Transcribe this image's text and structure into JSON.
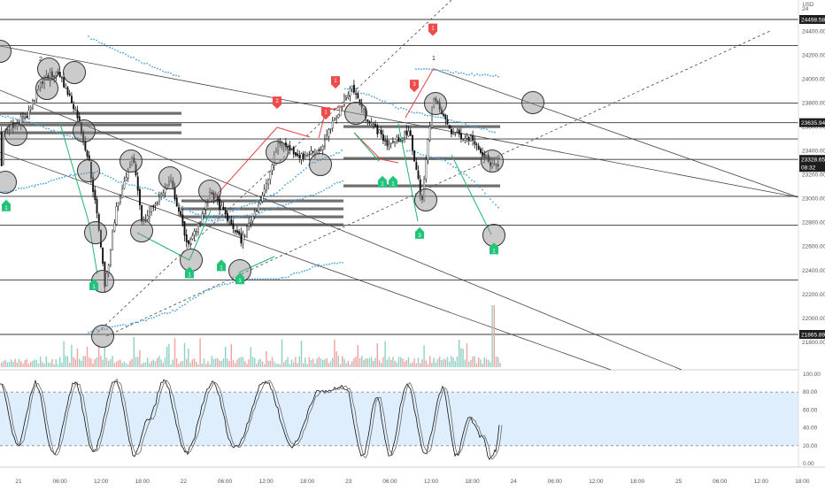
{
  "currency": "USD",
  "price_axis": {
    "ticks": [
      "24400.00",
      "24200.00",
      "24000.00",
      "23800.00",
      "23600.00",
      "23400.00",
      "23200.00",
      "23000.00",
      "22800.00",
      "22600.00",
      "22400.00",
      "22200.00",
      "22000.00",
      "21800.00"
    ],
    "top_cut_label": "24"
  },
  "price_badges": [
    {
      "label": "24498.58",
      "price": 24498.58,
      "style": "dark"
    },
    {
      "label": "23635.94",
      "price": 23635.94,
      "style": "dark"
    },
    {
      "label": "23328.65",
      "price": 23328.65,
      "style": "dark"
    },
    {
      "label": "08:32",
      "price": 23262,
      "style": "dark"
    },
    {
      "label": "21865.89",
      "price": 21865.89,
      "style": "dark"
    }
  ],
  "osc_axis": {
    "ticks": [
      "100.00",
      "80.00",
      "60.00",
      "40.00",
      "20.00",
      "0.00"
    ]
  },
  "time_axis": {
    "labels": [
      "21",
      "06:00",
      "12:00",
      "18:00",
      "22",
      "06:00",
      "12:00",
      "18:00",
      "23",
      "06:00",
      "12:00",
      "18:00",
      "24",
      "06:00",
      "12:00",
      "18:00",
      "25",
      "06:00",
      "12:00",
      "18:00"
    ]
  },
  "markers": {
    "sell": [
      {
        "x": 489,
        "price": 24420,
        "label": "1"
      },
      {
        "x": 379,
        "price": 23980,
        "label": "1"
      },
      {
        "x": 468,
        "price": 23950,
        "label": "3"
      },
      {
        "x": 313,
        "price": 23810,
        "label": "2"
      },
      {
        "x": 368,
        "price": 23720,
        "label": "1"
      }
    ],
    "buy": [
      {
        "x": 7,
        "price": 22940,
        "label": "1"
      },
      {
        "x": 432,
        "price": 23140,
        "label": "1"
      },
      {
        "x": 444,
        "price": 23140,
        "label": "1"
      },
      {
        "x": 474,
        "price": 22710,
        "label": "3"
      },
      {
        "x": 214,
        "price": 22380,
        "label": "1"
      },
      {
        "x": 250,
        "price": 22440,
        "label": "1"
      },
      {
        "x": 271,
        "price": 22330,
        "label": "1"
      },
      {
        "x": 106,
        "price": 22280,
        "label": "1"
      },
      {
        "x": 558,
        "price": 22580,
        "label": "1"
      }
    ]
  },
  "pivot_labels": [
    {
      "x": 46,
      "price": 24150,
      "text": "2"
    },
    {
      "x": 490,
      "price": 24160,
      "text": "1"
    }
  ],
  "chart_data": {
    "type": "candlestick",
    "price_range": [
      21600,
      24700
    ],
    "oscillator_range": [
      0,
      100
    ],
    "oscillator_band": [
      20,
      80
    ],
    "horizontal_levels": [
      24498.58,
      24280,
      23800,
      23635.94,
      23500,
      23328.65,
      23020,
      22780,
      22320,
      21865.89
    ],
    "candles_sampled": [
      {
        "x": 2,
        "close": 23560
      },
      {
        "x": 30,
        "close": 23700
      },
      {
        "x": 48,
        "close": 24000
      },
      {
        "x": 66,
        "close": 24050
      },
      {
        "x": 86,
        "close": 23720
      },
      {
        "x": 100,
        "close": 23300
      },
      {
        "x": 112,
        "close": 22700
      },
      {
        "x": 118,
        "close": 22250
      },
      {
        "x": 130,
        "close": 22900
      },
      {
        "x": 150,
        "close": 23350
      },
      {
        "x": 160,
        "close": 22800
      },
      {
        "x": 192,
        "close": 23150
      },
      {
        "x": 212,
        "close": 22600
      },
      {
        "x": 238,
        "close": 23050
      },
      {
        "x": 272,
        "close": 22650
      },
      {
        "x": 300,
        "close": 23100
      },
      {
        "x": 314,
        "close": 23480
      },
      {
        "x": 340,
        "close": 23350
      },
      {
        "x": 362,
        "close": 23420
      },
      {
        "x": 396,
        "close": 23950
      },
      {
        "x": 412,
        "close": 23700
      },
      {
        "x": 438,
        "close": 23450
      },
      {
        "x": 462,
        "close": 23550
      },
      {
        "x": 476,
        "close": 22980
      },
      {
        "x": 488,
        "close": 23850
      },
      {
        "x": 510,
        "close": 23550
      },
      {
        "x": 534,
        "close": 23500
      },
      {
        "x": 552,
        "close": 23300
      },
      {
        "x": 562,
        "close": 23262
      }
    ]
  }
}
